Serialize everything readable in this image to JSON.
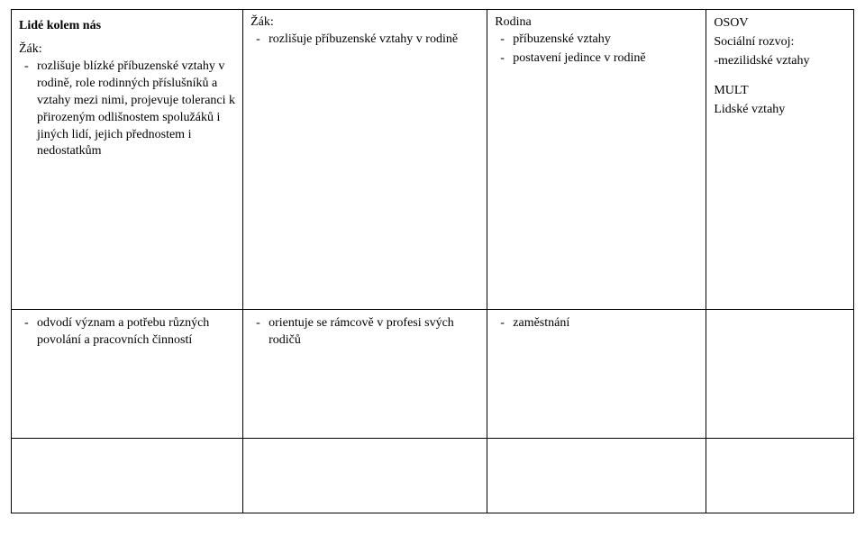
{
  "section_title": "Lidé kolem nás",
  "labels": {
    "zak": "Žák:",
    "rodina": "Rodina"
  },
  "row1": {
    "col1": {
      "bullets": [
        "rozlišuje blízké příbuzenské vztahy v rodině, role rodinných příslušníků a vztahy mezi nimi, projevuje toleranci k přirozeným odlišnostem spolužáků i jiných lidí, jejich přednostem i nedostatkům"
      ]
    },
    "col2": {
      "bullets": [
        "rozlišuje příbuzenské vztahy v rodině"
      ]
    },
    "col3": {
      "bullets": [
        "příbuzenské vztahy",
        "postavení jedince v rodině"
      ]
    },
    "col4": {
      "lines": [
        "OSOV",
        "Sociální rozvoj:",
        "-mezilidské vztahy"
      ],
      "lines2": [
        "MULT",
        "Lidské vztahy"
      ]
    }
  },
  "row2": {
    "col1": {
      "bullets": [
        "odvodí význam a potřebu různých povolání a pracovních činností"
      ]
    },
    "col2": {
      "bullets": [
        "orientuje se rámcově v profesi svých rodičů"
      ]
    },
    "col3": {
      "bullets": [
        "zaměstnání"
      ]
    }
  }
}
